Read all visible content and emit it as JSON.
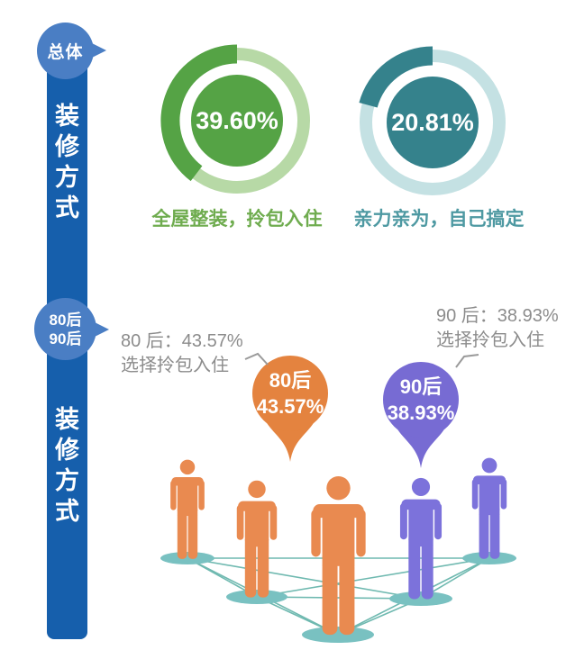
{
  "rail": {
    "segments": [
      {
        "badge": "总体",
        "title": "装修方式"
      },
      {
        "badge_top": "80后",
        "badge_bottom": "90后",
        "title": "装修方式"
      }
    ]
  },
  "chart_data": [
    {
      "type": "donut",
      "group": "总体",
      "percent": 39.6,
      "value_label": "39.60%",
      "caption": "全屋整装，拎包入住",
      "color_dark": "#55A345",
      "color_light": "#B7D9A6",
      "caption_color": "#6FAC4F"
    },
    {
      "type": "donut",
      "group": "总体",
      "percent": 20.81,
      "value_label": "20.81%",
      "caption": "亲力亲为，自己搞定",
      "color_dark": "#35828C",
      "color_light": "#C4E1E3",
      "caption_color": "#4E99A2"
    },
    {
      "type": "pin",
      "group_label": "80后",
      "percent": 43.57,
      "value_label": "43.57%",
      "note_line1": "80 后：43.57%",
      "note_line2": "选择拎包入住",
      "color": "#E4833F"
    },
    {
      "type": "pin",
      "group_label": "90后",
      "percent": 38.93,
      "value_label": "38.93%",
      "note_line1": "90 后：38.93%",
      "note_line2": "选择拎包入住",
      "color": "#776BD3"
    }
  ],
  "colors": {
    "bar_blue": "#165FAC",
    "badge_blue": "#4A7EC4",
    "people_orange": "#E98A50",
    "people_purple": "#7C72DB",
    "network_line": "#6FB9B0",
    "foot_ellipse": "#79C1C1",
    "connector_gray": "#9A9A9A",
    "note_gray": "#8C8C8C",
    "background": "#FFFFFF"
  }
}
